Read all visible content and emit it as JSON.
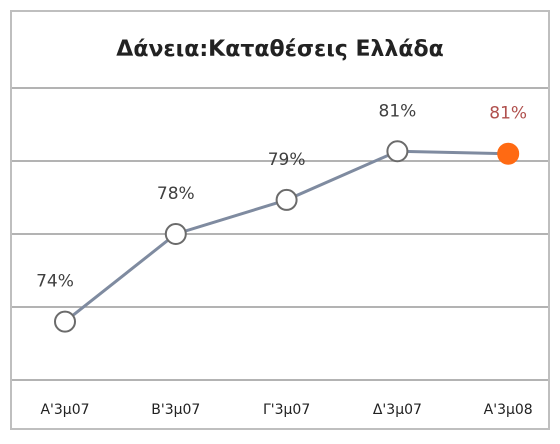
{
  "chart_data": {
    "type": "line",
    "title": "Δάνεια:Καταθέσεις Ελλάδα",
    "categories": [
      "Α'3μ07",
      "Β'3μ07",
      "Γ'3μ07",
      "Δ'3μ07",
      "Α'3μ08"
    ],
    "series": [
      {
        "color": "#7f8ba0",
        "values": [
          74.4,
          78.0,
          79.4,
          81.4,
          81.3
        ],
        "value_labels": [
          "74%",
          "78%",
          "79%",
          "81%",
          "81%"
        ],
        "marker_colors": [
          "#ffffff",
          "#ffffff",
          "#ffffff",
          "#ffffff",
          "#ff6a13"
        ],
        "label_colors": [
          "#404040",
          "#404040",
          "#404040",
          "#404040",
          "#b0504d"
        ]
      }
    ],
    "ylim": [
      72,
      84
    ],
    "yticks": [
      72,
      75,
      78,
      81,
      84
    ],
    "grid": true,
    "ytick_labels": false
  }
}
